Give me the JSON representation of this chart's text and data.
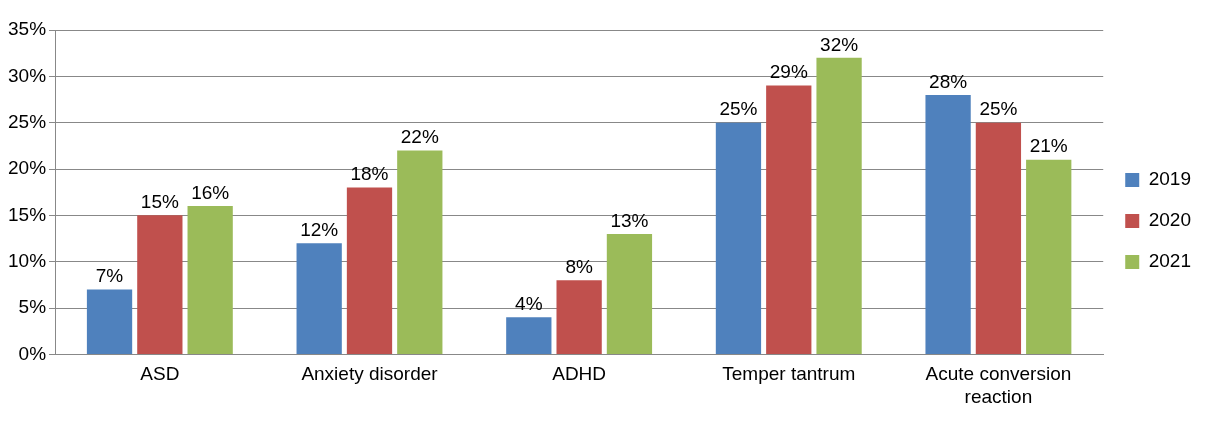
{
  "chart_data": {
    "type": "bar",
    "categories": [
      "ASD",
      "Anxiety disorder",
      "ADHD",
      "Temper tantrum",
      "Acute conversion reaction"
    ],
    "series": [
      {
        "name": "2019",
        "color": "#4f81bd",
        "values": [
          7,
          12,
          4,
          25,
          28
        ],
        "value_labels": [
          "7%",
          "12%",
          "4%",
          "25%",
          "28%"
        ]
      },
      {
        "name": "2020",
        "color": "#c0504d",
        "values": [
          15,
          18,
          8,
          29,
          25
        ],
        "value_labels": [
          "15%",
          "18%",
          "8%",
          "29%",
          "25%"
        ]
      },
      {
        "name": "2021",
        "color": "#9bbb59",
        "values": [
          16,
          22,
          13,
          32,
          21
        ],
        "value_labels": [
          "16%",
          "22%",
          "13%",
          "32%",
          "21%"
        ]
      }
    ],
    "ylim": [
      0,
      35
    ],
    "yticks": [
      {
        "value": 0,
        "label": "0%"
      },
      {
        "value": 5,
        "label": "5%"
      },
      {
        "value": 10,
        "label": "10%"
      },
      {
        "value": 15,
        "label": "15%"
      },
      {
        "value": 20,
        "label": "20%"
      },
      {
        "value": 25,
        "label": "25%"
      },
      {
        "value": 30,
        "label": "30%"
      },
      {
        "value": 35,
        "label": "35%"
      }
    ],
    "grid": "y",
    "legend": "right"
  }
}
